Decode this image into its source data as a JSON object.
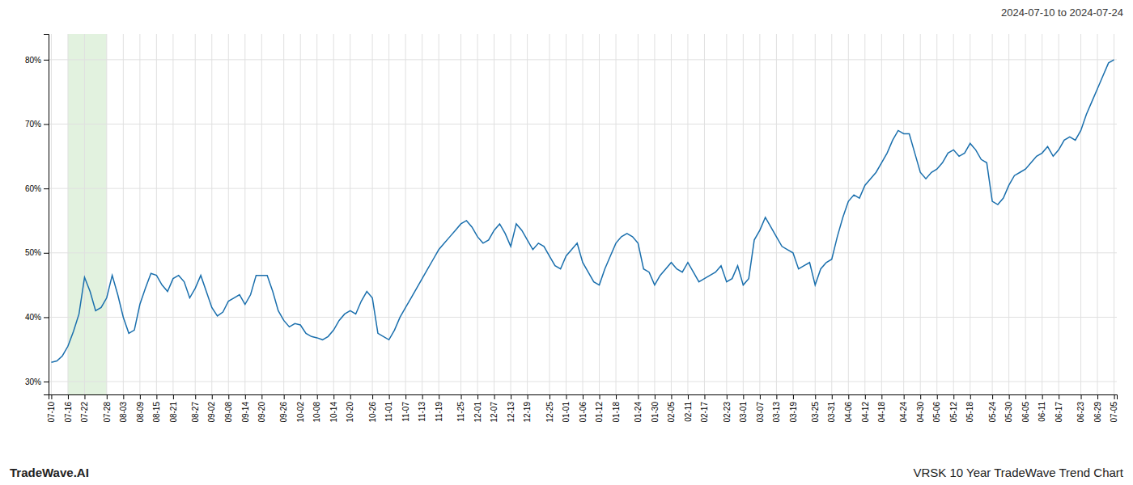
{
  "chart_data": {
    "type": "line",
    "title": "2024-07-10 to 2024-07-24",
    "annotations": [
      "TradeWave.AI",
      "VRSK 10 Year TradeWave Trend Chart"
    ],
    "color": "#1a6fad",
    "grid": true,
    "highlight": {
      "from": "07-16",
      "to": "07-28",
      "color": "#d6ecd2"
    },
    "ylim": [
      28,
      84
    ],
    "yticks": [
      {
        "value": 30,
        "label": "30%"
      },
      {
        "value": 40,
        "label": "40%"
      },
      {
        "value": 50,
        "label": "50%"
      },
      {
        "value": 60,
        "label": "60%"
      },
      {
        "value": 70,
        "label": "70%"
      },
      {
        "value": 80,
        "label": "80%"
      }
    ],
    "categories": [
      "07-10",
      null,
      null,
      "07-16",
      null,
      null,
      "07-22",
      null,
      null,
      null,
      "07-28",
      null,
      null,
      "08-03",
      null,
      null,
      "08-09",
      null,
      null,
      "08-15",
      null,
      null,
      "08-21",
      null,
      null,
      null,
      "08-27",
      null,
      null,
      "09-02",
      null,
      null,
      "09-08",
      null,
      null,
      "09-14",
      null,
      null,
      "09-20",
      null,
      null,
      null,
      "09-26",
      null,
      null,
      "10-02",
      null,
      null,
      "10-08",
      null,
      null,
      "10-14",
      null,
      null,
      "10-20",
      null,
      null,
      null,
      "10-26",
      null,
      null,
      "11-01",
      null,
      null,
      "11-07",
      null,
      null,
      "11-13",
      null,
      null,
      "11-19",
      null,
      null,
      null,
      "11-25",
      null,
      null,
      "12-01",
      null,
      null,
      "12-07",
      null,
      null,
      "12-13",
      null,
      null,
      "12-19",
      null,
      null,
      null,
      "12-25",
      null,
      null,
      "01-01",
      null,
      null,
      "01-06",
      null,
      null,
      "01-12",
      null,
      null,
      "01-18",
      null,
      null,
      null,
      "01-24",
      null,
      null,
      "01-30",
      null,
      null,
      "02-05",
      null,
      null,
      "02-11",
      null,
      null,
      "02-17",
      null,
      null,
      null,
      "02-23",
      null,
      null,
      "03-01",
      null,
      null,
      "03-07",
      null,
      null,
      "03-13",
      null,
      null,
      "03-19",
      null,
      null,
      null,
      "03-25",
      null,
      null,
      "03-31",
      null,
      null,
      "04-06",
      null,
      null,
      "04-12",
      null,
      null,
      "04-18",
      null,
      null,
      null,
      "04-24",
      null,
      null,
      "04-30",
      null,
      null,
      "05-06",
      null,
      null,
      "05-12",
      null,
      null,
      "05-18",
      null,
      null,
      null,
      "05-24",
      null,
      null,
      "05-30",
      null,
      null,
      "06-05",
      null,
      null,
      "06-11",
      null,
      null,
      "06-17",
      null,
      null,
      null,
      "06-23",
      null,
      null,
      "06-29",
      null,
      null,
      "07-05"
    ],
    "values": [
      33.0,
      33.2,
      34.0,
      35.5,
      37.8,
      40.5,
      46.2,
      44.0,
      41.0,
      41.5,
      43.0,
      46.5,
      43.5,
      40.0,
      37.5,
      38.0,
      42.0,
      44.5,
      46.8,
      46.5,
      45.0,
      44.0,
      46.0,
      46.5,
      45.5,
      43.0,
      44.5,
      46.5,
      44.0,
      41.5,
      40.2,
      40.8,
      42.5,
      43.0,
      43.5,
      42.0,
      43.5,
      46.5,
      46.5,
      46.5,
      44.0,
      41.0,
      39.5,
      38.5,
      39.0,
      38.8,
      37.5,
      37.0,
      36.8,
      36.5,
      37.0,
      38.0,
      39.5,
      40.5,
      41.0,
      40.5,
      42.5,
      44.0,
      43.0,
      37.5,
      37.0,
      36.5,
      38.0,
      40.0,
      41.5,
      43.0,
      44.5,
      46.0,
      47.5,
      49.0,
      50.5,
      51.5,
      52.5,
      53.5,
      54.5,
      55.0,
      54.0,
      52.5,
      51.5,
      52.0,
      53.5,
      54.5,
      53.0,
      51.0,
      54.5,
      53.5,
      52.0,
      50.5,
      51.5,
      51.0,
      49.5,
      48.0,
      47.5,
      49.5,
      50.5,
      51.5,
      48.5,
      47.0,
      45.5,
      45.0,
      47.5,
      49.5,
      51.5,
      52.5,
      53.0,
      52.5,
      51.5,
      47.5,
      47.0,
      45.0,
      46.5,
      47.5,
      48.5,
      47.5,
      47.0,
      48.5,
      47.0,
      45.5,
      46.0,
      46.5,
      47.0,
      48.0,
      45.5,
      46.0,
      48.0,
      45.0,
      46.0,
      52.0,
      53.5,
      55.5,
      54.0,
      52.5,
      51.0,
      50.5,
      50.0,
      47.5,
      48.0,
      48.5,
      45.0,
      47.5,
      48.5,
      49.0,
      52.5,
      55.5,
      58.0,
      59.0,
      58.5,
      60.5,
      61.5,
      62.5,
      64.0,
      65.5,
      67.5,
      69.0,
      68.5,
      68.5,
      65.5,
      62.5,
      61.5,
      62.5,
      63.0,
      64.0,
      65.5,
      66.0,
      65.0,
      65.5,
      67.0,
      66.0,
      64.5,
      64.0,
      58.0,
      57.5,
      58.5,
      60.5,
      62.0,
      62.5,
      63.0,
      64.0,
      65.0,
      65.5,
      66.5,
      65.0,
      66.0,
      67.5,
      68.0,
      67.5,
      69.0,
      71.5,
      73.5,
      75.5,
      77.5,
      79.5,
      80.0
    ]
  }
}
